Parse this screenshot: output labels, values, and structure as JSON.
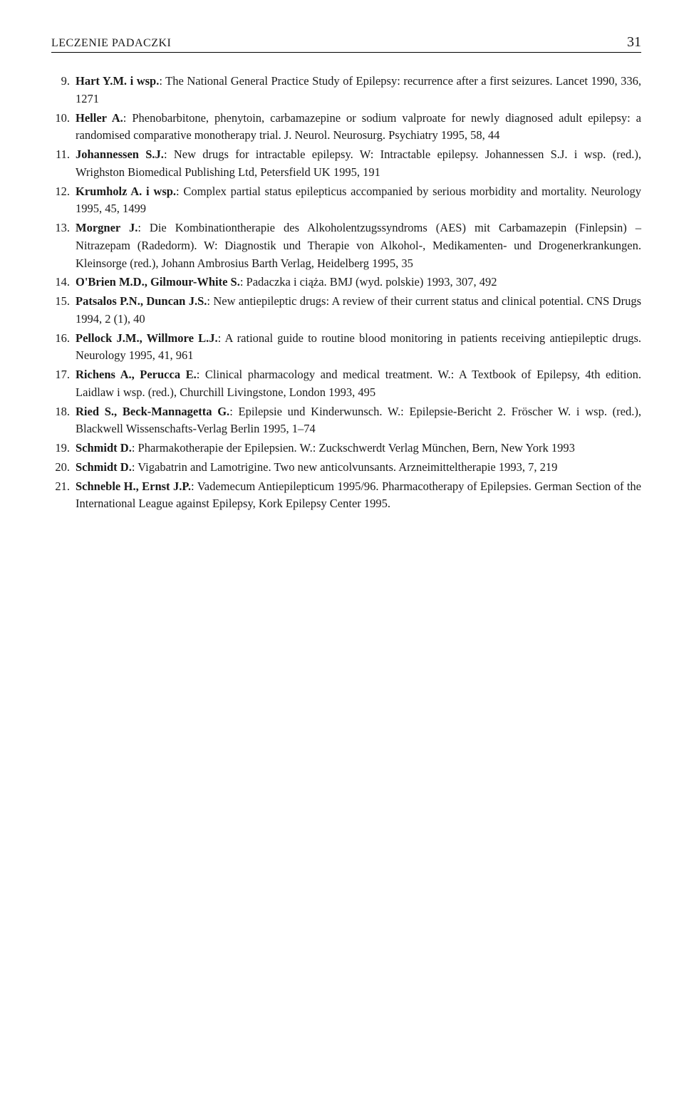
{
  "header": {
    "title": "LECZENIE PADACZKI",
    "page": "31"
  },
  "references": [
    {
      "num": "9.",
      "html": "<b>Hart Y.M. i wsp.</b>: The National General Practice Study of Epilepsy: recurrence after a first seizures. Lancet 1990, 336, 1271"
    },
    {
      "num": "10.",
      "html": "<b>Heller A.</b>: Phenobarbitone, phenytoin, carbamazepine or sodium valproate for newly diagnosed adult epilepsy: a randomised comparative monotherapy trial. J. Neurol. Neurosurg. Psychiatry 1995, 58, 44"
    },
    {
      "num": "11.",
      "html": "<b>Johannessen S.J.</b>: New drugs for intractable epilepsy. W: Intractable epilepsy. Johannessen S.J. i wsp. (red.), Wrighston Biomedical Publishing Ltd, Petersfield UK 1995, 191"
    },
    {
      "num": "12.",
      "html": "<b>Krumholz A. i wsp.</b>: Complex partial status epilepticus accompanied by serious morbidity and mortality. Neurology 1995, 45, 1499"
    },
    {
      "num": "13.",
      "html": "<b>Morgner J.</b>: Die Kombinationtherapie des Alkoholentzugssyndroms (AES) mit Carbamazepin (Finlepsin) – Nitrazepam (Radedorm). W: Diagnostik und Therapie von Alkohol-, Medikamenten- und Drogenerkrankungen. Kleinsorge (red.), Johann Ambrosius Barth Verlag, Heidelberg 1995, 35"
    },
    {
      "num": "14.",
      "html": "<b>O'Brien M.D., Gilmour-White S.</b>: Padaczka i ciąża. BMJ (wyd. polskie) 1993, 307, 492"
    },
    {
      "num": "15.",
      "html": "<b>Patsalos P.N., Duncan J.S.</b>: New antiepileptic drugs: A review of their current status and clinical potential. CNS Drugs 1994, 2 (1), 40"
    },
    {
      "num": "16.",
      "html": "<b>Pellock J.M., Willmore L.J.</b>: A rational guide to routine blood monitoring in patients receiving antiepileptic drugs. Neurology 1995, 41, 961"
    },
    {
      "num": "17.",
      "html": "<b>Richens A., Perucca E.</b>: Clinical pharmacology and medical treatment. W.: A Textbook of Epilepsy, 4th edition. Laidlaw i wsp. (red.), Churchill Livingstone, London 1993, 495"
    },
    {
      "num": "18.",
      "html": "<b>Ried S., Beck-Mannagetta G.</b>: Epilepsie und Kinderwunsch. W.: Epilepsie-Bericht 2. Fröscher W. i wsp. (red.), Blackwell Wissenschafts-Verlag Berlin 1995, 1–74"
    },
    {
      "num": "19.",
      "html": "<b>Schmidt D.</b>: Pharmakotherapie der Epilepsien. W.: Zuckschwerdt Verlag München, Bern, New York 1993"
    },
    {
      "num": "20.",
      "html": "<b>Schmidt D.</b>: Vigabatrin and Lamotrigine. Two new anticolvunsants. Arzneimitteltherapie 1993, 7, 219"
    },
    {
      "num": "21.",
      "html": "<b>Schneble H., Ernst J.P.</b>: Vademecum Antiepilepticum 1995/96. Pharmacotherapy of Epilepsies. German Section of the International League against Epilepsy, Kork Epilepsy Center 1995."
    }
  ]
}
